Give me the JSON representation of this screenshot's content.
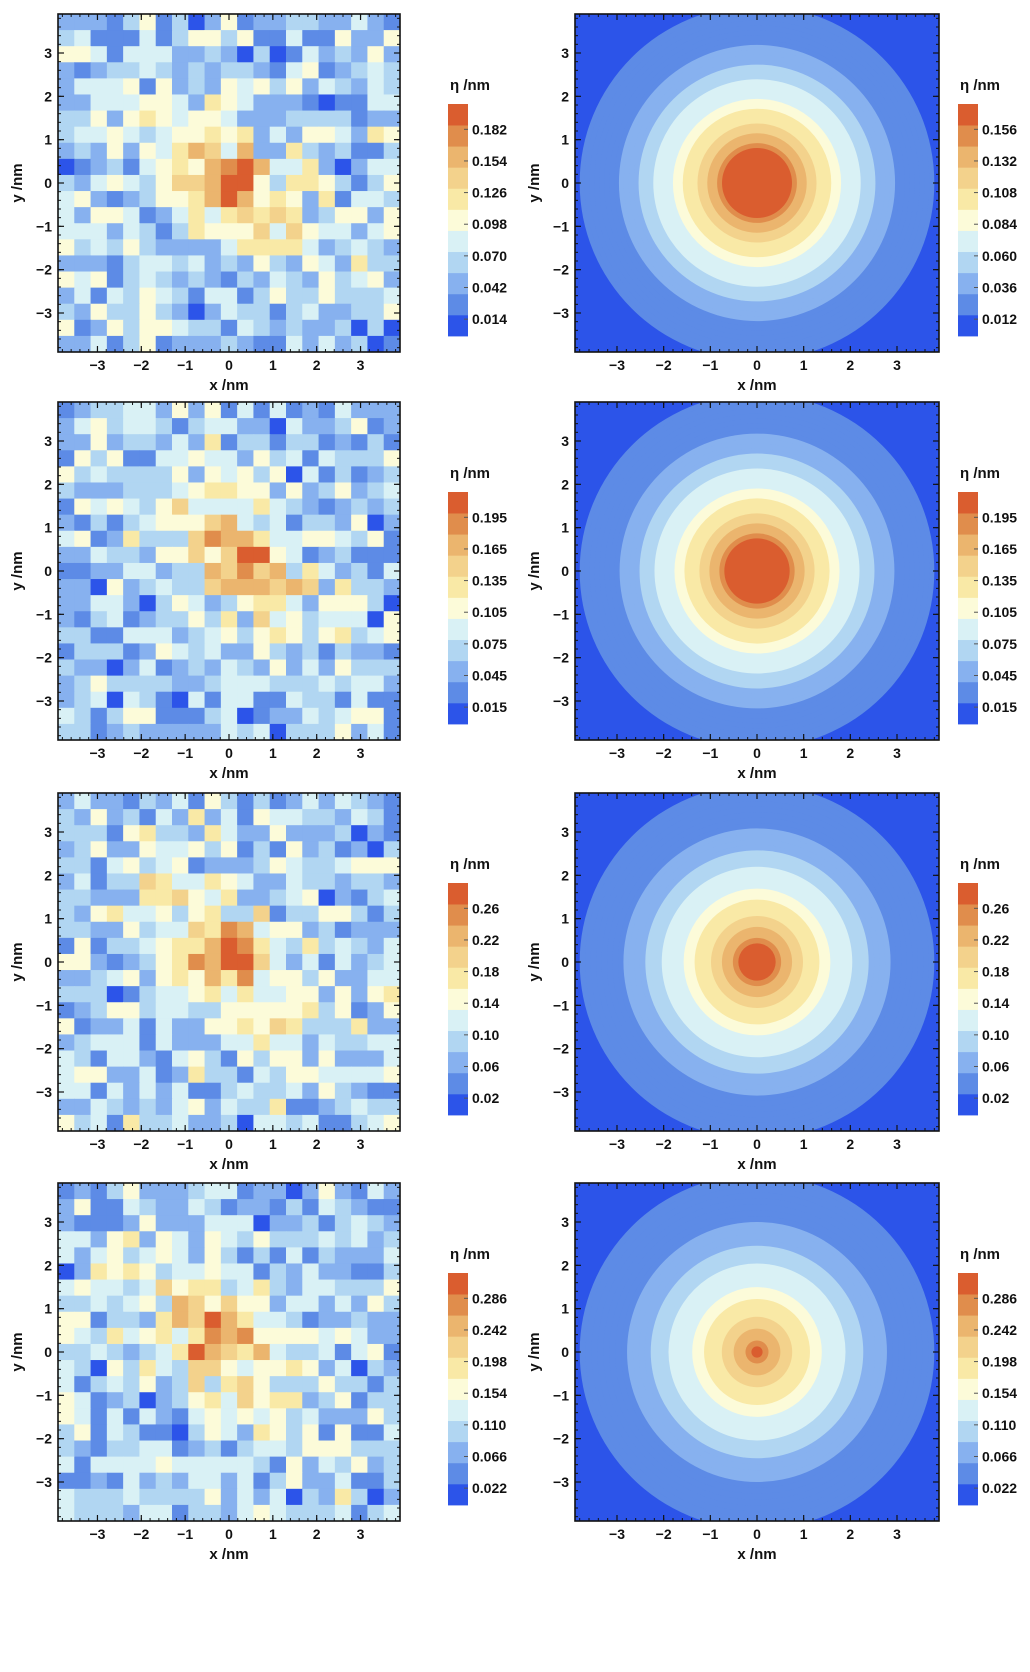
{
  "colorscale": [
    "#2c54e9",
    "#5d8be6",
    "#87b1ef",
    "#b1d6f2",
    "#d9f1f5",
    "#fcfbd9",
    "#f9e9a6",
    "#f3d28c",
    "#ebb56e",
    "#e08d4c",
    "#da5d2f"
  ],
  "chart_data": [
    {
      "type": "heatmap",
      "panel": "row1-left",
      "variant": "noisy",
      "xlabel": "x /nm",
      "ylabel": "y /nm",
      "xlim": [
        -3.9,
        3.9
      ],
      "ylim": [
        -3.9,
        3.9
      ],
      "x_ticks": [
        "−3",
        "−2",
        "−1",
        "0",
        "1",
        "2",
        "3"
      ],
      "y_ticks": [
        "3",
        "2",
        "1",
        "0",
        "−1",
        "−2",
        "−3"
      ],
      "colorbar_title": "η /nm",
      "colorbar_ticks": [
        "0.182",
        "0.154",
        "0.126",
        "0.098",
        "0.070",
        "0.042",
        "0.014"
      ],
      "vmin": 0.0,
      "vmax": 0.196,
      "peak_x": 0.0,
      "peak_y": 0.0,
      "peak_value": 0.196,
      "seed": 11
    },
    {
      "type": "heatmap",
      "panel": "row1-right",
      "variant": "radial",
      "xlabel": "x /nm",
      "ylabel": "y /nm",
      "xlim": [
        -3.9,
        3.9
      ],
      "ylim": [
        -3.9,
        3.9
      ],
      "x_ticks": [
        "−3",
        "−2",
        "−1",
        "0",
        "1",
        "2",
        "3"
      ],
      "y_ticks": [
        "3",
        "2",
        "1",
        "0",
        "−1",
        "−2",
        "−3"
      ],
      "colorbar_title": "η /nm",
      "colorbar_ticks": [
        "0.156",
        "0.132",
        "0.108",
        "0.084",
        "0.060",
        "0.036",
        "0.012"
      ],
      "vmin": 0.0,
      "vmax": 0.168,
      "radius": 3.8,
      "core_radius": 0.75,
      "seed": 0
    },
    {
      "type": "heatmap",
      "panel": "row2-left",
      "variant": "noisy",
      "xlabel": "x /nm",
      "ylabel": "y /nm",
      "xlim": [
        -3.9,
        3.9
      ],
      "ylim": [
        -3.9,
        3.9
      ],
      "x_ticks": [
        "−3",
        "−2",
        "−1",
        "0",
        "1",
        "2",
        "3"
      ],
      "y_ticks": [
        "3",
        "2",
        "1",
        "0",
        "−1",
        "−2",
        "−3"
      ],
      "colorbar_title": "η /nm",
      "colorbar_ticks": [
        "0.195",
        "0.165",
        "0.135",
        "0.105",
        "0.075",
        "0.045",
        "0.015"
      ],
      "vmin": 0.0,
      "vmax": 0.21,
      "peak_x": 0.3,
      "peak_y": 0.2,
      "peak_value": 0.21,
      "seed": 23
    },
    {
      "type": "heatmap",
      "panel": "row2-right",
      "variant": "radial",
      "xlabel": "x /nm",
      "ylabel": "y /nm",
      "xlim": [
        -3.9,
        3.9
      ],
      "ylim": [
        -3.9,
        3.9
      ],
      "x_ticks": [
        "−3",
        "−2",
        "−1",
        "0",
        "1",
        "2",
        "3"
      ],
      "y_ticks": [
        "3",
        "2",
        "1",
        "0",
        "−1",
        "−2",
        "−3"
      ],
      "colorbar_title": "η /nm",
      "colorbar_ticks": [
        "0.195",
        "0.165",
        "0.135",
        "0.105",
        "0.075",
        "0.045",
        "0.015"
      ],
      "vmin": 0.0,
      "vmax": 0.21,
      "radius": 3.8,
      "core_radius": 0.7,
      "seed": 0
    },
    {
      "type": "heatmap",
      "panel": "row3-left",
      "variant": "noisy",
      "xlabel": "x /nm",
      "ylabel": "y /nm",
      "xlim": [
        -3.9,
        3.9
      ],
      "ylim": [
        -3.9,
        3.9
      ],
      "x_ticks": [
        "−3",
        "−2",
        "−1",
        "0",
        "1",
        "2",
        "3"
      ],
      "y_ticks": [
        "3",
        "2",
        "1",
        "0",
        "−1",
        "−2",
        "−3"
      ],
      "colorbar_title": "η /nm",
      "colorbar_ticks": [
        "0.26",
        "0.22",
        "0.18",
        "0.14",
        "0.10",
        "0.06",
        "0.02"
      ],
      "vmin": 0.0,
      "vmax": 0.28,
      "peak_x": 0.0,
      "peak_y": 0.1,
      "peak_value": 0.28,
      "seed": 37
    },
    {
      "type": "heatmap",
      "panel": "row3-right",
      "variant": "radial",
      "xlabel": "x /nm",
      "ylabel": "y /nm",
      "xlim": [
        -3.9,
        3.9
      ],
      "ylim": [
        -3.9,
        3.9
      ],
      "x_ticks": [
        "−3",
        "−2",
        "−1",
        "0",
        "1",
        "2",
        "3"
      ],
      "y_ticks": [
        "3",
        "2",
        "1",
        "0",
        "−1",
        "−2",
        "−3"
      ],
      "colorbar_title": "η /nm",
      "colorbar_ticks": [
        "0.26",
        "0.22",
        "0.18",
        "0.14",
        "0.10",
        "0.06",
        "0.02"
      ],
      "vmin": 0.0,
      "vmax": 0.28,
      "radius": 3.8,
      "core_radius": 0.4,
      "seed": 0
    },
    {
      "type": "heatmap",
      "panel": "row4-left",
      "variant": "noisy",
      "xlabel": "x /nm",
      "ylabel": "y /nm",
      "xlim": [
        -3.9,
        3.9
      ],
      "ylim": [
        -3.9,
        3.9
      ],
      "x_ticks": [
        "−3",
        "−2",
        "−1",
        "0",
        "1",
        "2",
        "3"
      ],
      "y_ticks": [
        "3",
        "2",
        "1",
        "0",
        "−1",
        "−2",
        "−3"
      ],
      "colorbar_title": "η /nm",
      "colorbar_ticks": [
        "0.286",
        "0.242",
        "0.198",
        "0.154",
        "0.110",
        "0.066",
        "0.022"
      ],
      "vmin": 0.0,
      "vmax": 0.308,
      "peak_x": -0.3,
      "peak_y": 0.3,
      "peak_value": 0.308,
      "seed": 53
    },
    {
      "type": "heatmap",
      "panel": "row4-right",
      "variant": "radial",
      "xlabel": "x /nm",
      "ylabel": "y /nm",
      "xlim": [
        -3.9,
        3.9
      ],
      "ylim": [
        -3.9,
        3.9
      ],
      "x_ticks": [
        "−3",
        "−2",
        "−1",
        "0",
        "1",
        "2",
        "3"
      ],
      "y_ticks": [
        "3",
        "2",
        "1",
        "0",
        "−1",
        "−2",
        "−3"
      ],
      "colorbar_title": "η /nm",
      "colorbar_ticks": [
        "0.286",
        "0.242",
        "0.198",
        "0.154",
        "0.110",
        "0.066",
        "0.022"
      ],
      "vmin": 0.0,
      "vmax": 0.308,
      "radius": 3.8,
      "core_radius": 0.12,
      "seed": 0
    }
  ]
}
